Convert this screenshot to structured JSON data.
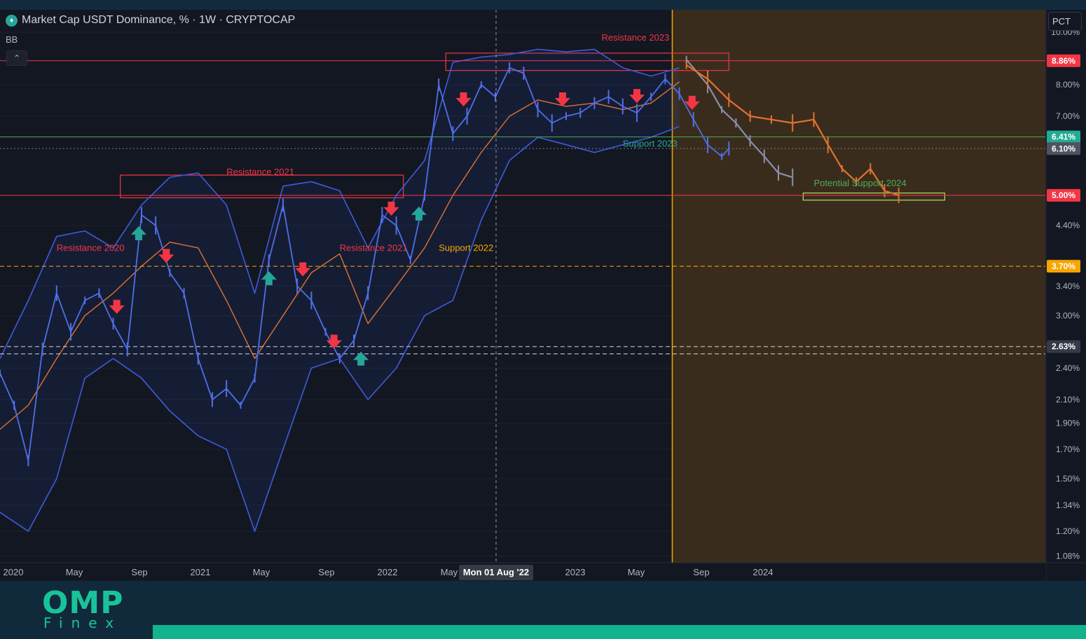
{
  "legend": {
    "title": "Market Cap USDT Dominance, % · 1W · CRYPTOCAP",
    "indicator": "BB",
    "collapse_icon": "chevron-up-icon"
  },
  "scale_button": "PCT",
  "brand": {
    "name": "OMP",
    "sub": "Finex"
  },
  "chart_data": {
    "type": "line",
    "y_scale": "log",
    "ylim": [
      1.05,
      11.0
    ],
    "y_ticks": [
      "10.00%",
      "8.00%",
      "7.00%",
      "4.40%",
      "3.40%",
      "3.00%",
      "2.40%",
      "2.10%",
      "1.90%",
      "1.70%",
      "1.50%",
      "1.34%",
      "1.20%",
      "1.08%"
    ],
    "x_ticks": [
      "2020",
      "May",
      "Sep",
      "2021",
      "May",
      "Sep",
      "2022",
      "May",
      "Mon 01 Aug '22",
      "2023",
      "May",
      "Sep",
      "2024"
    ],
    "crosshair_x_label": "Mon 01 Aug '22",
    "price_tags": [
      {
        "label": "8.86%",
        "value": 8.86,
        "color": "#f23645"
      },
      {
        "label": "6.41%",
        "value": 6.41,
        "color": "#22ab94"
      },
      {
        "label": "6.10%",
        "value": 6.1,
        "color": "#50535e"
      },
      {
        "label": "5.00%",
        "value": 5.0,
        "color": "#f23645"
      },
      {
        "label": "3.70%",
        "value": 3.7,
        "color": "#f7a600"
      },
      {
        "label": "2.63%",
        "value": 2.63,
        "color": "#363a45"
      }
    ],
    "horizontal_lines": [
      {
        "value": 8.86,
        "style": "solid",
        "color": "#f23645"
      },
      {
        "value": 6.41,
        "style": "solid",
        "color": "#4caf50"
      },
      {
        "value": 6.1,
        "style": "dotted",
        "color": "#787b86"
      },
      {
        "value": 5.0,
        "style": "solid",
        "color": "#f23645"
      },
      {
        "value": 3.7,
        "style": "dashed",
        "color": "#f7a600"
      },
      {
        "value": 2.63,
        "style": "dashed",
        "color": "#d1d4dc"
      },
      {
        "value": 2.55,
        "style": "dashed",
        "color": "#d1d4dc"
      }
    ],
    "annotations": [
      {
        "text": "Resistance 2020",
        "t": 0.08,
        "v": 3.95,
        "color": "#f23645"
      },
      {
        "text": "Resistance 2021",
        "t": 0.32,
        "v": 5.45,
        "color": "#f23645"
      },
      {
        "text": "Resistance 2021",
        "t": 0.48,
        "v": 3.95,
        "color": "#f23645"
      },
      {
        "text": "Support 2022",
        "t": 0.62,
        "v": 3.95,
        "color": "#f7a600"
      },
      {
        "text": "Resistance 2023",
        "t": 0.85,
        "v": 9.65,
        "color": "#f23645"
      },
      {
        "text": "Support 2023",
        "t": 0.88,
        "v": 6.15,
        "color": "#22ab94"
      },
      {
        "text": "Potential Support 2024",
        "t": 1.15,
        "v": 5.2,
        "color": "#4caf50"
      }
    ],
    "zones": [
      {
        "name": "resistance-2021",
        "t0": 0.17,
        "t1": 0.57,
        "v0": 4.95,
        "v1": 5.45,
        "color": "#f23645"
      },
      {
        "name": "resistance-2023",
        "t0": 0.63,
        "t1": 1.03,
        "v0": 8.5,
        "v1": 9.15,
        "color": "#f23645"
      },
      {
        "name": "potential-support-2024",
        "t0": 1.135,
        "t1": 1.335,
        "v0": 4.9,
        "v1": 5.05,
        "color": "#b5e36a"
      }
    ],
    "arrows_down": [
      0.165,
      0.235,
      0.428,
      0.472,
      0.553,
      0.655,
      0.795,
      0.9,
      0.978
    ],
    "arrows_up": [
      0.196,
      0.38,
      0.51,
      0.592
    ],
    "forecast_region": {
      "t_start": 0.95,
      "t_end": 1.4
    },
    "series": [
      {
        "name": "",
        "kind": "price",
        "points": [
          [
            0.0,
            2.35
          ],
          [
            0.02,
            2.05
          ],
          [
            0.04,
            1.62
          ],
          [
            0.06,
            2.6
          ],
          [
            0.08,
            3.3
          ],
          [
            0.1,
            2.8
          ],
          [
            0.12,
            3.2
          ],
          [
            0.14,
            3.3
          ],
          [
            0.16,
            2.9
          ],
          [
            0.18,
            2.6
          ],
          [
            0.2,
            4.6
          ],
          [
            0.22,
            4.4
          ],
          [
            0.24,
            3.6
          ],
          [
            0.26,
            3.3
          ],
          [
            0.28,
            2.5
          ],
          [
            0.3,
            2.1
          ],
          [
            0.32,
            2.2
          ],
          [
            0.34,
            2.05
          ],
          [
            0.36,
            2.3
          ],
          [
            0.38,
            3.8
          ],
          [
            0.4,
            4.8
          ],
          [
            0.42,
            3.4
          ],
          [
            0.44,
            3.2
          ],
          [
            0.46,
            2.8
          ],
          [
            0.48,
            2.5
          ],
          [
            0.5,
            2.7
          ],
          [
            0.52,
            3.3
          ],
          [
            0.54,
            4.6
          ],
          [
            0.56,
            4.4
          ],
          [
            0.58,
            3.8
          ],
          [
            0.6,
            5.0
          ],
          [
            0.62,
            8.0
          ],
          [
            0.64,
            6.5
          ],
          [
            0.66,
            7.0
          ],
          [
            0.68,
            8.0
          ],
          [
            0.7,
            7.6
          ],
          [
            0.72,
            8.6
          ],
          [
            0.74,
            8.4
          ],
          [
            0.76,
            7.2
          ],
          [
            0.78,
            6.8
          ],
          [
            0.8,
            7.0
          ],
          [
            0.82,
            7.1
          ],
          [
            0.84,
            7.4
          ],
          [
            0.86,
            7.6
          ],
          [
            0.88,
            7.3
          ],
          [
            0.9,
            7.1
          ],
          [
            0.92,
            7.6
          ],
          [
            0.94,
            8.2
          ],
          [
            0.96,
            7.7
          ],
          [
            0.98,
            6.9
          ],
          [
            1.0,
            6.2
          ],
          [
            1.02,
            5.9
          ],
          [
            1.03,
            6.1
          ]
        ]
      },
      {
        "name": "",
        "kind": "bb-basis",
        "points": [
          [
            0.0,
            1.85
          ],
          [
            0.04,
            2.05
          ],
          [
            0.08,
            2.5
          ],
          [
            0.12,
            3.0
          ],
          [
            0.16,
            3.3
          ],
          [
            0.2,
            3.7
          ],
          [
            0.24,
            4.1
          ],
          [
            0.28,
            4.0
          ],
          [
            0.32,
            3.2
          ],
          [
            0.36,
            2.5
          ],
          [
            0.4,
            3.0
          ],
          [
            0.44,
            3.6
          ],
          [
            0.48,
            3.9
          ],
          [
            0.52,
            2.9
          ],
          [
            0.56,
            3.4
          ],
          [
            0.6,
            4.0
          ],
          [
            0.64,
            5.0
          ],
          [
            0.68,
            6.0
          ],
          [
            0.72,
            7.0
          ],
          [
            0.76,
            7.5
          ],
          [
            0.8,
            7.3
          ],
          [
            0.84,
            7.4
          ],
          [
            0.88,
            7.2
          ],
          [
            0.92,
            7.4
          ],
          [
            0.96,
            8.1
          ]
        ]
      },
      {
        "name": "",
        "kind": "bb-upper",
        "points": [
          [
            0.0,
            2.5
          ],
          [
            0.04,
            3.2
          ],
          [
            0.08,
            4.2
          ],
          [
            0.12,
            4.3
          ],
          [
            0.16,
            4.0
          ],
          [
            0.2,
            4.8
          ],
          [
            0.24,
            5.4
          ],
          [
            0.28,
            5.5
          ],
          [
            0.32,
            4.8
          ],
          [
            0.36,
            3.3
          ],
          [
            0.4,
            5.2
          ],
          [
            0.44,
            5.3
          ],
          [
            0.48,
            5.1
          ],
          [
            0.52,
            4.0
          ],
          [
            0.56,
            5.0
          ],
          [
            0.6,
            5.8
          ],
          [
            0.64,
            8.8
          ],
          [
            0.68,
            9.0
          ],
          [
            0.72,
            9.1
          ],
          [
            0.76,
            9.3
          ],
          [
            0.8,
            9.2
          ],
          [
            0.84,
            9.3
          ],
          [
            0.88,
            8.6
          ],
          [
            0.92,
            8.3
          ],
          [
            0.96,
            8.6
          ]
        ]
      },
      {
        "name": "",
        "kind": "bb-lower",
        "points": [
          [
            0.0,
            1.3
          ],
          [
            0.04,
            1.2
          ],
          [
            0.08,
            1.5
          ],
          [
            0.12,
            2.3
          ],
          [
            0.16,
            2.5
          ],
          [
            0.2,
            2.3
          ],
          [
            0.24,
            2.0
          ],
          [
            0.28,
            1.8
          ],
          [
            0.32,
            1.7
          ],
          [
            0.36,
            1.2
          ],
          [
            0.4,
            1.7
          ],
          [
            0.44,
            2.4
          ],
          [
            0.48,
            2.5
          ],
          [
            0.52,
            2.1
          ],
          [
            0.56,
            2.4
          ],
          [
            0.6,
            3.0
          ],
          [
            0.64,
            3.2
          ],
          [
            0.68,
            4.5
          ],
          [
            0.72,
            5.8
          ],
          [
            0.76,
            6.4
          ],
          [
            0.8,
            6.2
          ],
          [
            0.84,
            6.0
          ],
          [
            0.88,
            6.2
          ],
          [
            0.92,
            6.4
          ],
          [
            0.96,
            6.7
          ]
        ]
      },
      {
        "name": "",
        "kind": "projection-1",
        "points": [
          [
            0.97,
            8.9
          ],
          [
            1.0,
            8.0
          ],
          [
            1.02,
            7.2
          ],
          [
            1.04,
            6.8
          ],
          [
            1.06,
            6.3
          ],
          [
            1.08,
            5.9
          ],
          [
            1.1,
            5.5
          ],
          [
            1.12,
            5.4
          ]
        ]
      },
      {
        "name": "",
        "kind": "projection-2",
        "points": [
          [
            0.97,
            8.7
          ],
          [
            1.0,
            8.2
          ],
          [
            1.03,
            7.5
          ],
          [
            1.06,
            7.0
          ],
          [
            1.09,
            6.9
          ],
          [
            1.12,
            6.8
          ],
          [
            1.15,
            6.9
          ],
          [
            1.17,
            6.2
          ],
          [
            1.19,
            5.6
          ],
          [
            1.21,
            5.3
          ],
          [
            1.23,
            5.6
          ],
          [
            1.25,
            5.1
          ],
          [
            1.27,
            5.0
          ]
        ]
      }
    ]
  }
}
